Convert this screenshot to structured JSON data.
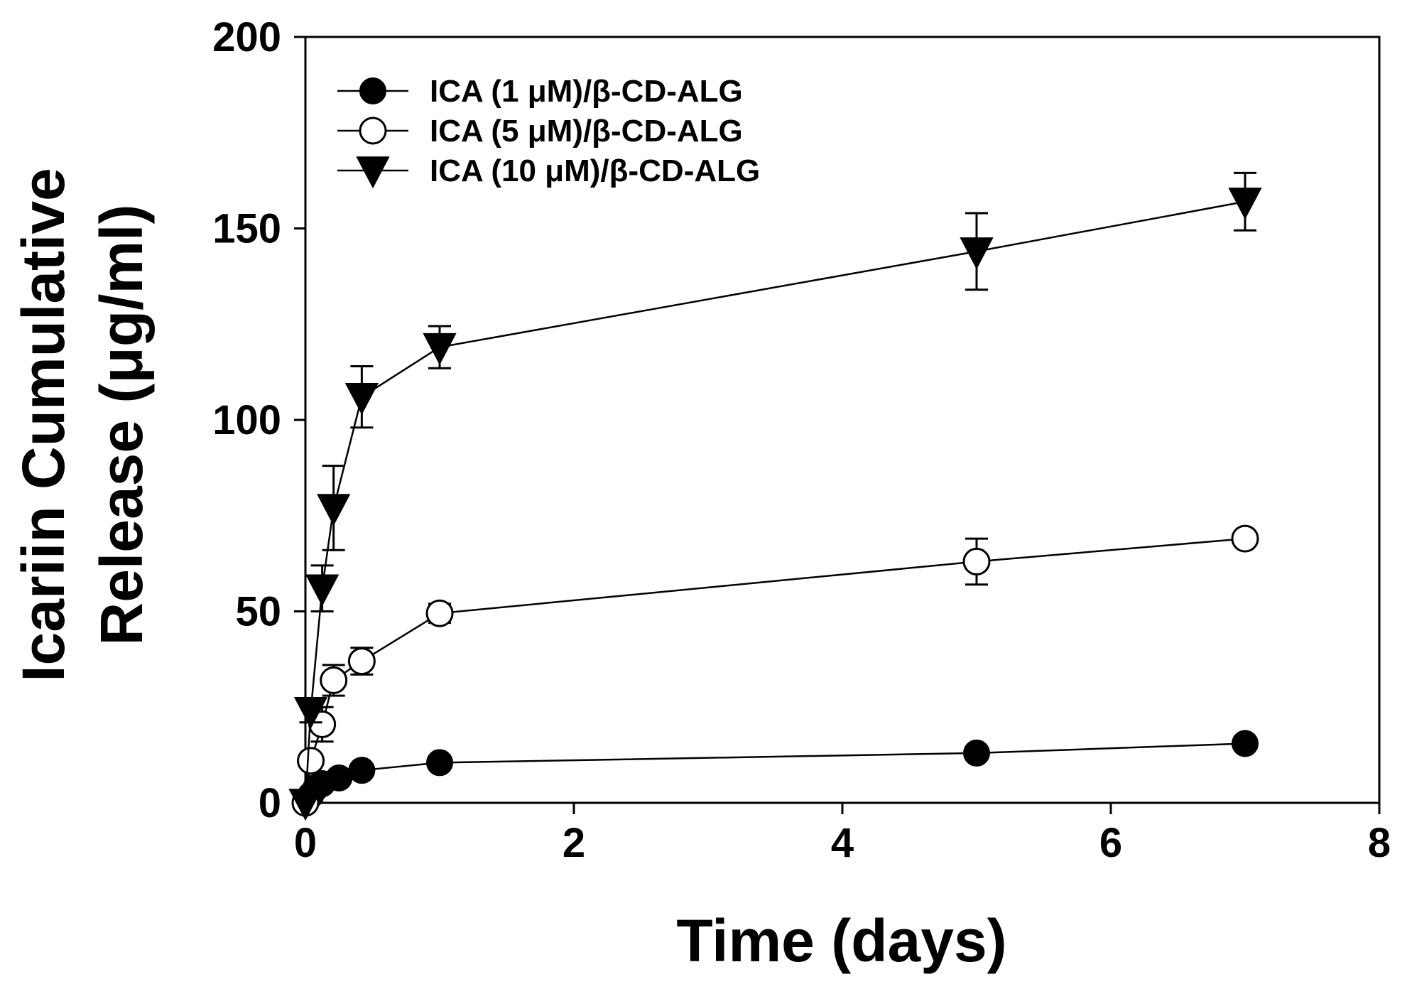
{
  "chart_data": {
    "type": "line",
    "title": "",
    "xlabel": "Time (days)",
    "ylabel_line1": "Icariin Cumulative",
    "ylabel_line2": "Release (μg/ml)",
    "xlim": [
      0,
      8
    ],
    "ylim": [
      0,
      200
    ],
    "xticks": [
      0,
      2,
      4,
      6,
      8
    ],
    "yticks": [
      0,
      50,
      100,
      150,
      200
    ],
    "grid": false,
    "legend_position": "top-left",
    "series": [
      {
        "name": "ICA (1 μM)/β-CD-ALG",
        "marker": "filled-circle",
        "x": [
          0,
          0.04,
          0.08,
          0.125,
          0.25,
          0.42,
          1,
          5,
          7
        ],
        "y": [
          0,
          2,
          4,
          5,
          6.5,
          8.5,
          10.5,
          13,
          15.5
        ],
        "err": [
          0,
          0,
          0,
          0,
          0,
          0,
          0,
          0,
          0
        ]
      },
      {
        "name": "ICA (5 μM)/β-CD-ALG",
        "marker": "open-circle",
        "x": [
          0,
          0.04,
          0.125,
          0.21,
          0.42,
          1,
          5,
          7
        ],
        "y": [
          0,
          11,
          20.5,
          32,
          37,
          49.5,
          63,
          69
        ],
        "err": [
          0,
          0,
          4.5,
          4,
          3.5,
          2.5,
          6,
          0
        ]
      },
      {
        "name": "ICA (10 μM)/β-CD-ALG",
        "marker": "filled-triangle-down",
        "x": [
          0,
          0.04,
          0.125,
          0.21,
          0.42,
          1,
          5,
          7
        ],
        "y": [
          0,
          24,
          56,
          77,
          106,
          119,
          144,
          157
        ],
        "err": [
          0,
          3,
          6,
          11,
          8,
          5.5,
          10,
          7.5
        ]
      }
    ]
  }
}
